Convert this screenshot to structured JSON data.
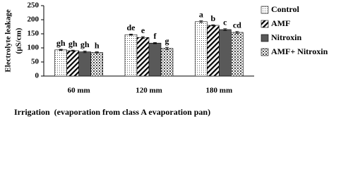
{
  "chart_data": {
    "type": "bar",
    "y_label": [
      "Electrolyte leakage",
      "(µS/cm)"
    ],
    "x_label": "Irrigation  (evaporation from class A evaporation pan)",
    "categories": [
      "60 mm",
      "120 mm",
      "180 mm"
    ],
    "ylim": [
      0,
      250
    ],
    "yticks": [
      0,
      50,
      100,
      150,
      200,
      250
    ],
    "grid": false,
    "legend": "right",
    "series": [
      {
        "name": "Control",
        "color": "#ffffff",
        "pattern": "dots",
        "values": [
          93,
          147,
          193
        ],
        "errors": [
          2,
          2,
          3
        ],
        "letters": [
          "gh",
          "de",
          "a"
        ]
      },
      {
        "name": "AMF",
        "color": "#ffffff",
        "pattern": "diagonal",
        "values": [
          90,
          137,
          180
        ],
        "errors": [
          2,
          3,
          2
        ],
        "letters": [
          "gh",
          "e",
          "b"
        ]
      },
      {
        "name": "Nitroxin",
        "color": "#595959",
        "pattern": "solid",
        "values": [
          86,
          117,
          165
        ],
        "errors": [
          3,
          2,
          3
        ],
        "letters": [
          "gh",
          "f",
          "c"
        ]
      },
      {
        "name": "AMF+ Nitroxin",
        "color": "#ffffff",
        "pattern": "checker",
        "values": [
          84,
          98,
          155
        ],
        "errors": [
          2,
          4,
          3
        ],
        "letters": [
          "h",
          "g",
          "cd"
        ]
      }
    ]
  }
}
